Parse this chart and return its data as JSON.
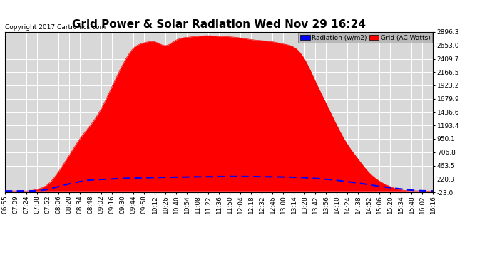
{
  "title": "Grid Power & Solar Radiation Wed Nov 29 16:24",
  "copyright": "Copyright 2017 Cartronics.com",
  "ylim": [
    -23.0,
    2896.3
  ],
  "yticks": [
    -23.0,
    220.3,
    463.5,
    706.8,
    950.1,
    1193.4,
    1436.6,
    1679.9,
    1923.2,
    2166.5,
    2409.7,
    2653.0,
    2896.3
  ],
  "ytick_labels": [
    "-23.0",
    "220.3",
    "463.5",
    "706.8",
    "950.1",
    "1193.4",
    "1436.6",
    "1679.9",
    "1923.2",
    "2166.5",
    "2409.7",
    "2653.0",
    "2896.3"
  ],
  "background_color": "#ffffff",
  "plot_bg_color": "#d8d8d8",
  "grid_color": "#ffffff",
  "fill_color": "#ff0000",
  "line_color": "#0000ff",
  "legend_radiation_color": "#0000ff",
  "legend_grid_color": "#ff0000",
  "xtick_labels": [
    "06:55",
    "07:09",
    "07:24",
    "07:38",
    "07:52",
    "08:06",
    "08:20",
    "08:34",
    "08:48",
    "09:02",
    "09:16",
    "09:30",
    "09:44",
    "09:58",
    "10:12",
    "10:26",
    "10:40",
    "10:54",
    "11:08",
    "11:22",
    "11:36",
    "11:50",
    "12:04",
    "12:18",
    "12:32",
    "12:46",
    "13:00",
    "13:14",
    "13:28",
    "13:42",
    "13:56",
    "14:10",
    "14:24",
    "14:38",
    "14:52",
    "15:06",
    "15:20",
    "15:34",
    "15:48",
    "16:02",
    "16:16"
  ],
  "title_fontsize": 11,
  "tick_fontsize": 6.5,
  "copyright_fontsize": 6.5,
  "solar_x": [
    0,
    1,
    2,
    3,
    4,
    5,
    6,
    7,
    8,
    9,
    10,
    11,
    12,
    13,
    14,
    15,
    16,
    17,
    18,
    19,
    20,
    21,
    22,
    23,
    24,
    25,
    26,
    27,
    28,
    29,
    30,
    31,
    32,
    33,
    34,
    35,
    36,
    37,
    38,
    39,
    40
  ],
  "solar_y": [
    0,
    0,
    0,
    30,
    120,
    350,
    650,
    950,
    1200,
    1500,
    1900,
    2300,
    2600,
    2700,
    2720,
    2650,
    2750,
    2800,
    2820,
    2830,
    2820,
    2810,
    2790,
    2760,
    2740,
    2720,
    2680,
    2620,
    2400,
    2000,
    1600,
    1200,
    850,
    580,
    340,
    180,
    80,
    20,
    5,
    0,
    0
  ],
  "grid_y": [
    0,
    0,
    0,
    5,
    30,
    80,
    130,
    170,
    200,
    210,
    220,
    230,
    235,
    240,
    245,
    248,
    250,
    255,
    258,
    260,
    262,
    265,
    265,
    263,
    260,
    258,
    255,
    250,
    242,
    230,
    215,
    195,
    170,
    145,
    115,
    85,
    60,
    35,
    15,
    5,
    0
  ]
}
